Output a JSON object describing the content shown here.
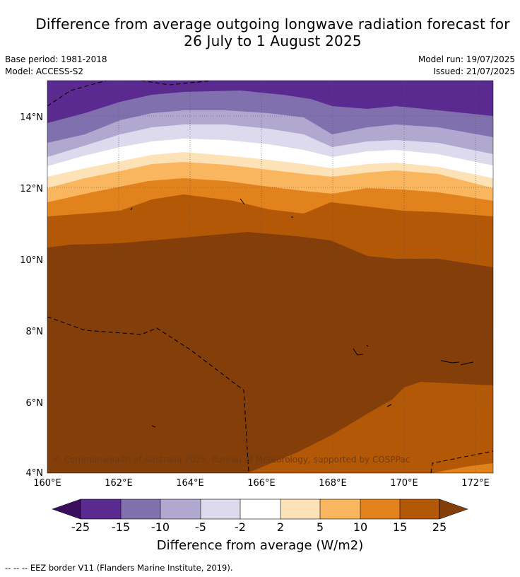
{
  "title_line1": "Difference from average outgoing longwave radiation forecast for",
  "title_line2": "26 July to 1 August 2025",
  "base_period": "Base period: 1981-2018",
  "model": "Model: ACCESS-S2",
  "model_run": "Model run: 19/07/2025",
  "issued": "Issued: 21/07/2025",
  "map": {
    "lon_range": [
      160,
      172.5
    ],
    "lat_range": [
      4,
      15
    ],
    "lon_ticks": [
      "160°E",
      "162°E",
      "164°E",
      "166°E",
      "168°E",
      "170°E",
      "172°E"
    ],
    "lat_ticks": [
      "4°N",
      "6°N",
      "8°N",
      "10°N",
      "12°N",
      "14°N"
    ],
    "copyright": "© Commonwealth of Australia 2025, Bureau of Meteorology, supported by COSPPac",
    "grid": true
  },
  "colorbar": {
    "labels": [
      "-25",
      "-15",
      "-10",
      "-5",
      "-2",
      "2",
      "5",
      "10",
      "15",
      "25"
    ],
    "colors": [
      "#3b0f5e",
      "#5b2a91",
      "#8070ae",
      "#b1a8d0",
      "#dcdaec",
      "#ffffff",
      "#fde2b8",
      "#f9b65f",
      "#e2821d",
      "#b35807",
      "#843e0a"
    ],
    "title": "Difference from average (W/m2)"
  },
  "footnote": "--  --  -- EEZ border V11 (Flanders Marine Institute, 2019)."
}
